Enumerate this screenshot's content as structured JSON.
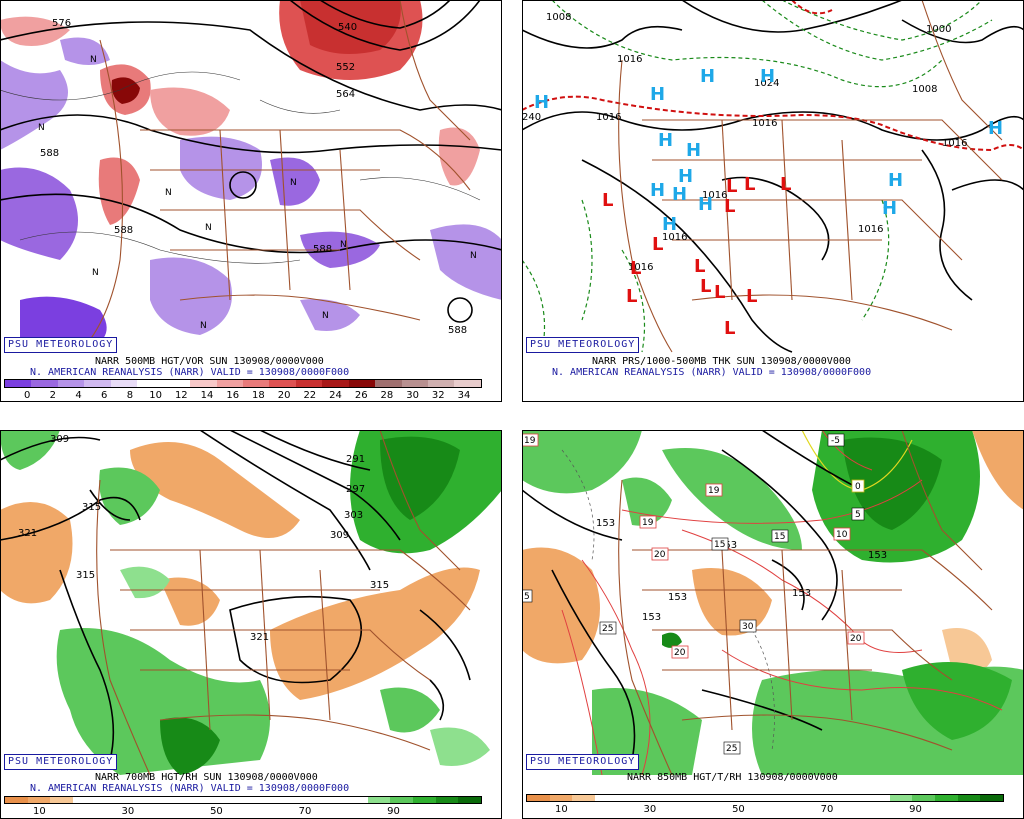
{
  "panels": [
    {
      "id": "vort500",
      "badge": "PSU METEOROLOGY",
      "caption1": "NARR 500MB HGT/VOR SUN 130908/0000V000",
      "caption2": "N. AMERICAN REANALYSIS (NARR) VALID = 130908/0000F000",
      "scale_colors": [
        "#7b3fe0",
        "#9a68e0",
        "#b593e8",
        "#d0b9f0",
        "#e8dcf7",
        "#ffffff",
        "#ffffff",
        "#f7c8c8",
        "#f0a0a0",
        "#e87a7a",
        "#de5252",
        "#c83030",
        "#a81818",
        "#880808",
        "#a07070",
        "#b89090",
        "#d0b0b0",
        "#e8cccc"
      ],
      "scale_ticks": [
        "0",
        "2",
        "4",
        "6",
        "8",
        "10",
        "12",
        "14",
        "16",
        "18",
        "20",
        "22",
        "24",
        "26",
        "28",
        "30",
        "32",
        "34"
      ],
      "contour_labels": [
        "576",
        "540",
        "552",
        "564",
        "588",
        "588",
        "588",
        "588"
      ],
      "vort_labels": [
        "N",
        "N",
        "N",
        "N",
        "N",
        "N",
        "N",
        "N",
        "N",
        "N"
      ]
    },
    {
      "id": "prs1000",
      "badge": "PSU METEOROLOGY",
      "caption1": "NARR PRS/1000-500MB THK SUN 130908/0000V000",
      "caption2": "N. AMERICAN REANALYSIS (NARR) VALID = 130908/0000F000",
      "contour_labels": [
        "1008",
        "1016",
        "1016",
        "1016",
        "1008",
        "1000",
        "1016",
        "1016",
        "1016",
        "1016",
        "1016",
        "1024",
        "240"
      ],
      "highs": [
        "H",
        "H",
        "H",
        "H",
        "H",
        "H",
        "H",
        "H",
        "H",
        "H",
        "H",
        "H",
        "H",
        "H"
      ],
      "lows": [
        "L",
        "L",
        "L",
        "L",
        "L",
        "L",
        "L",
        "L",
        "L",
        "L",
        "L",
        "L",
        "L"
      ]
    },
    {
      "id": "rh700",
      "badge": "PSU METEOROLOGY",
      "caption1": "NARR 700MB HGT/RH SUN 130908/0000V000",
      "caption2": "N. AMERICAN REANALYSIS (NARR) VALID = 130908/0000F000",
      "scale_colors": [
        "#e8904a",
        "#f0a868",
        "#f7c896",
        "#ffffff",
        "#ffffff",
        "#ffffff",
        "#ffffff",
        "#ffffff",
        "#ffffff",
        "#ffffff",
        "#ffffff",
        "#ffffff",
        "#ffffff",
        "#ffffff",
        "#ffffff",
        "#ffffff",
        "#8ee08e",
        "#5cc85c",
        "#2fb02f",
        "#178a17",
        "#0a6a0a"
      ],
      "scale_ticks": [
        "10",
        "30",
        "50",
        "70",
        "90"
      ],
      "contour_labels": [
        "309",
        "291",
        "297",
        "303",
        "309",
        "315",
        "321",
        "315",
        "321",
        "315"
      ]
    },
    {
      "id": "rh850",
      "badge": "PSU METEOROLOGY",
      "caption1": "NARR 850MB HGT/T/RH 130908/0000V000",
      "scale_colors": [
        "#e8904a",
        "#f0a868",
        "#f7c896",
        "#ffffff",
        "#ffffff",
        "#ffffff",
        "#ffffff",
        "#ffffff",
        "#ffffff",
        "#ffffff",
        "#ffffff",
        "#ffffff",
        "#ffffff",
        "#ffffff",
        "#ffffff",
        "#ffffff",
        "#8ee08e",
        "#5cc85c",
        "#2fb02f",
        "#178a17",
        "#0a6a0a"
      ],
      "scale_ticks": [
        "10",
        "30",
        "50",
        "70",
        "90"
      ],
      "contour_labels": [
        "153",
        "153",
        "153",
        "153",
        "153",
        "153"
      ],
      "temp_labels": [
        "-5",
        "0",
        "5",
        "10",
        "15",
        "15",
        "19",
        "19",
        "19",
        "20",
        "20",
        "20",
        "25",
        "25",
        "30",
        "5"
      ]
    }
  ]
}
